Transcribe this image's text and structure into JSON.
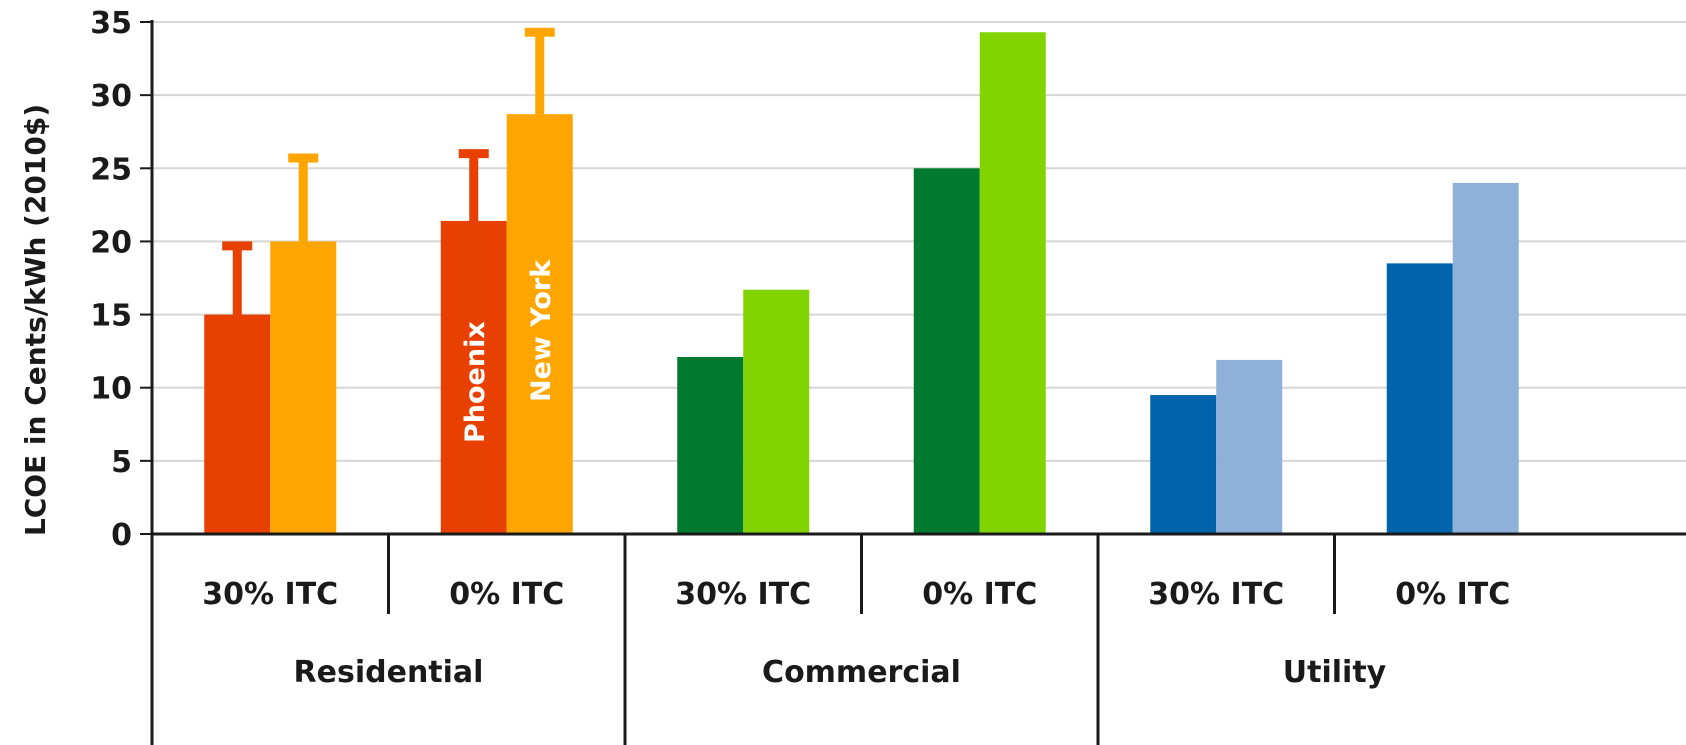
{
  "chart_data": {
    "type": "bar",
    "ylabel": "LCOE in Cents/kWh (2010$)",
    "ylim": [
      0,
      35
    ],
    "yticks": [
      "0",
      "5",
      "10",
      "15",
      "20",
      "25",
      "30",
      "35"
    ],
    "grid": true,
    "groups": [
      {
        "name": "Residential",
        "subgroups": [
          "30% ITC",
          "0% ITC"
        ]
      },
      {
        "name": "Commercial",
        "subgroups": [
          "30% ITC",
          "0% ITC"
        ]
      },
      {
        "name": "Utility",
        "subgroups": [
          "30% ITC",
          "0% ITC"
        ]
      }
    ],
    "series": [
      {
        "name": "Phoenix",
        "values": [
          15.0,
          21.4,
          12.1,
          25.0,
          9.5,
          18.5
        ],
        "error_upper": [
          19.7,
          26.0,
          null,
          null,
          null,
          null
        ]
      },
      {
        "name": "New York",
        "values": [
          20.0,
          28.7,
          16.7,
          34.3,
          11.9,
          24.0
        ],
        "error_upper": [
          25.7,
          34.3,
          null,
          null,
          null,
          null
        ]
      }
    ],
    "colors": {
      "Residential": [
        "#e84000",
        "#ffa500"
      ],
      "Commercial": [
        "#007a2e",
        "#82d400"
      ],
      "Utility": [
        "#0064ab",
        "#8fb1d9"
      ]
    }
  }
}
